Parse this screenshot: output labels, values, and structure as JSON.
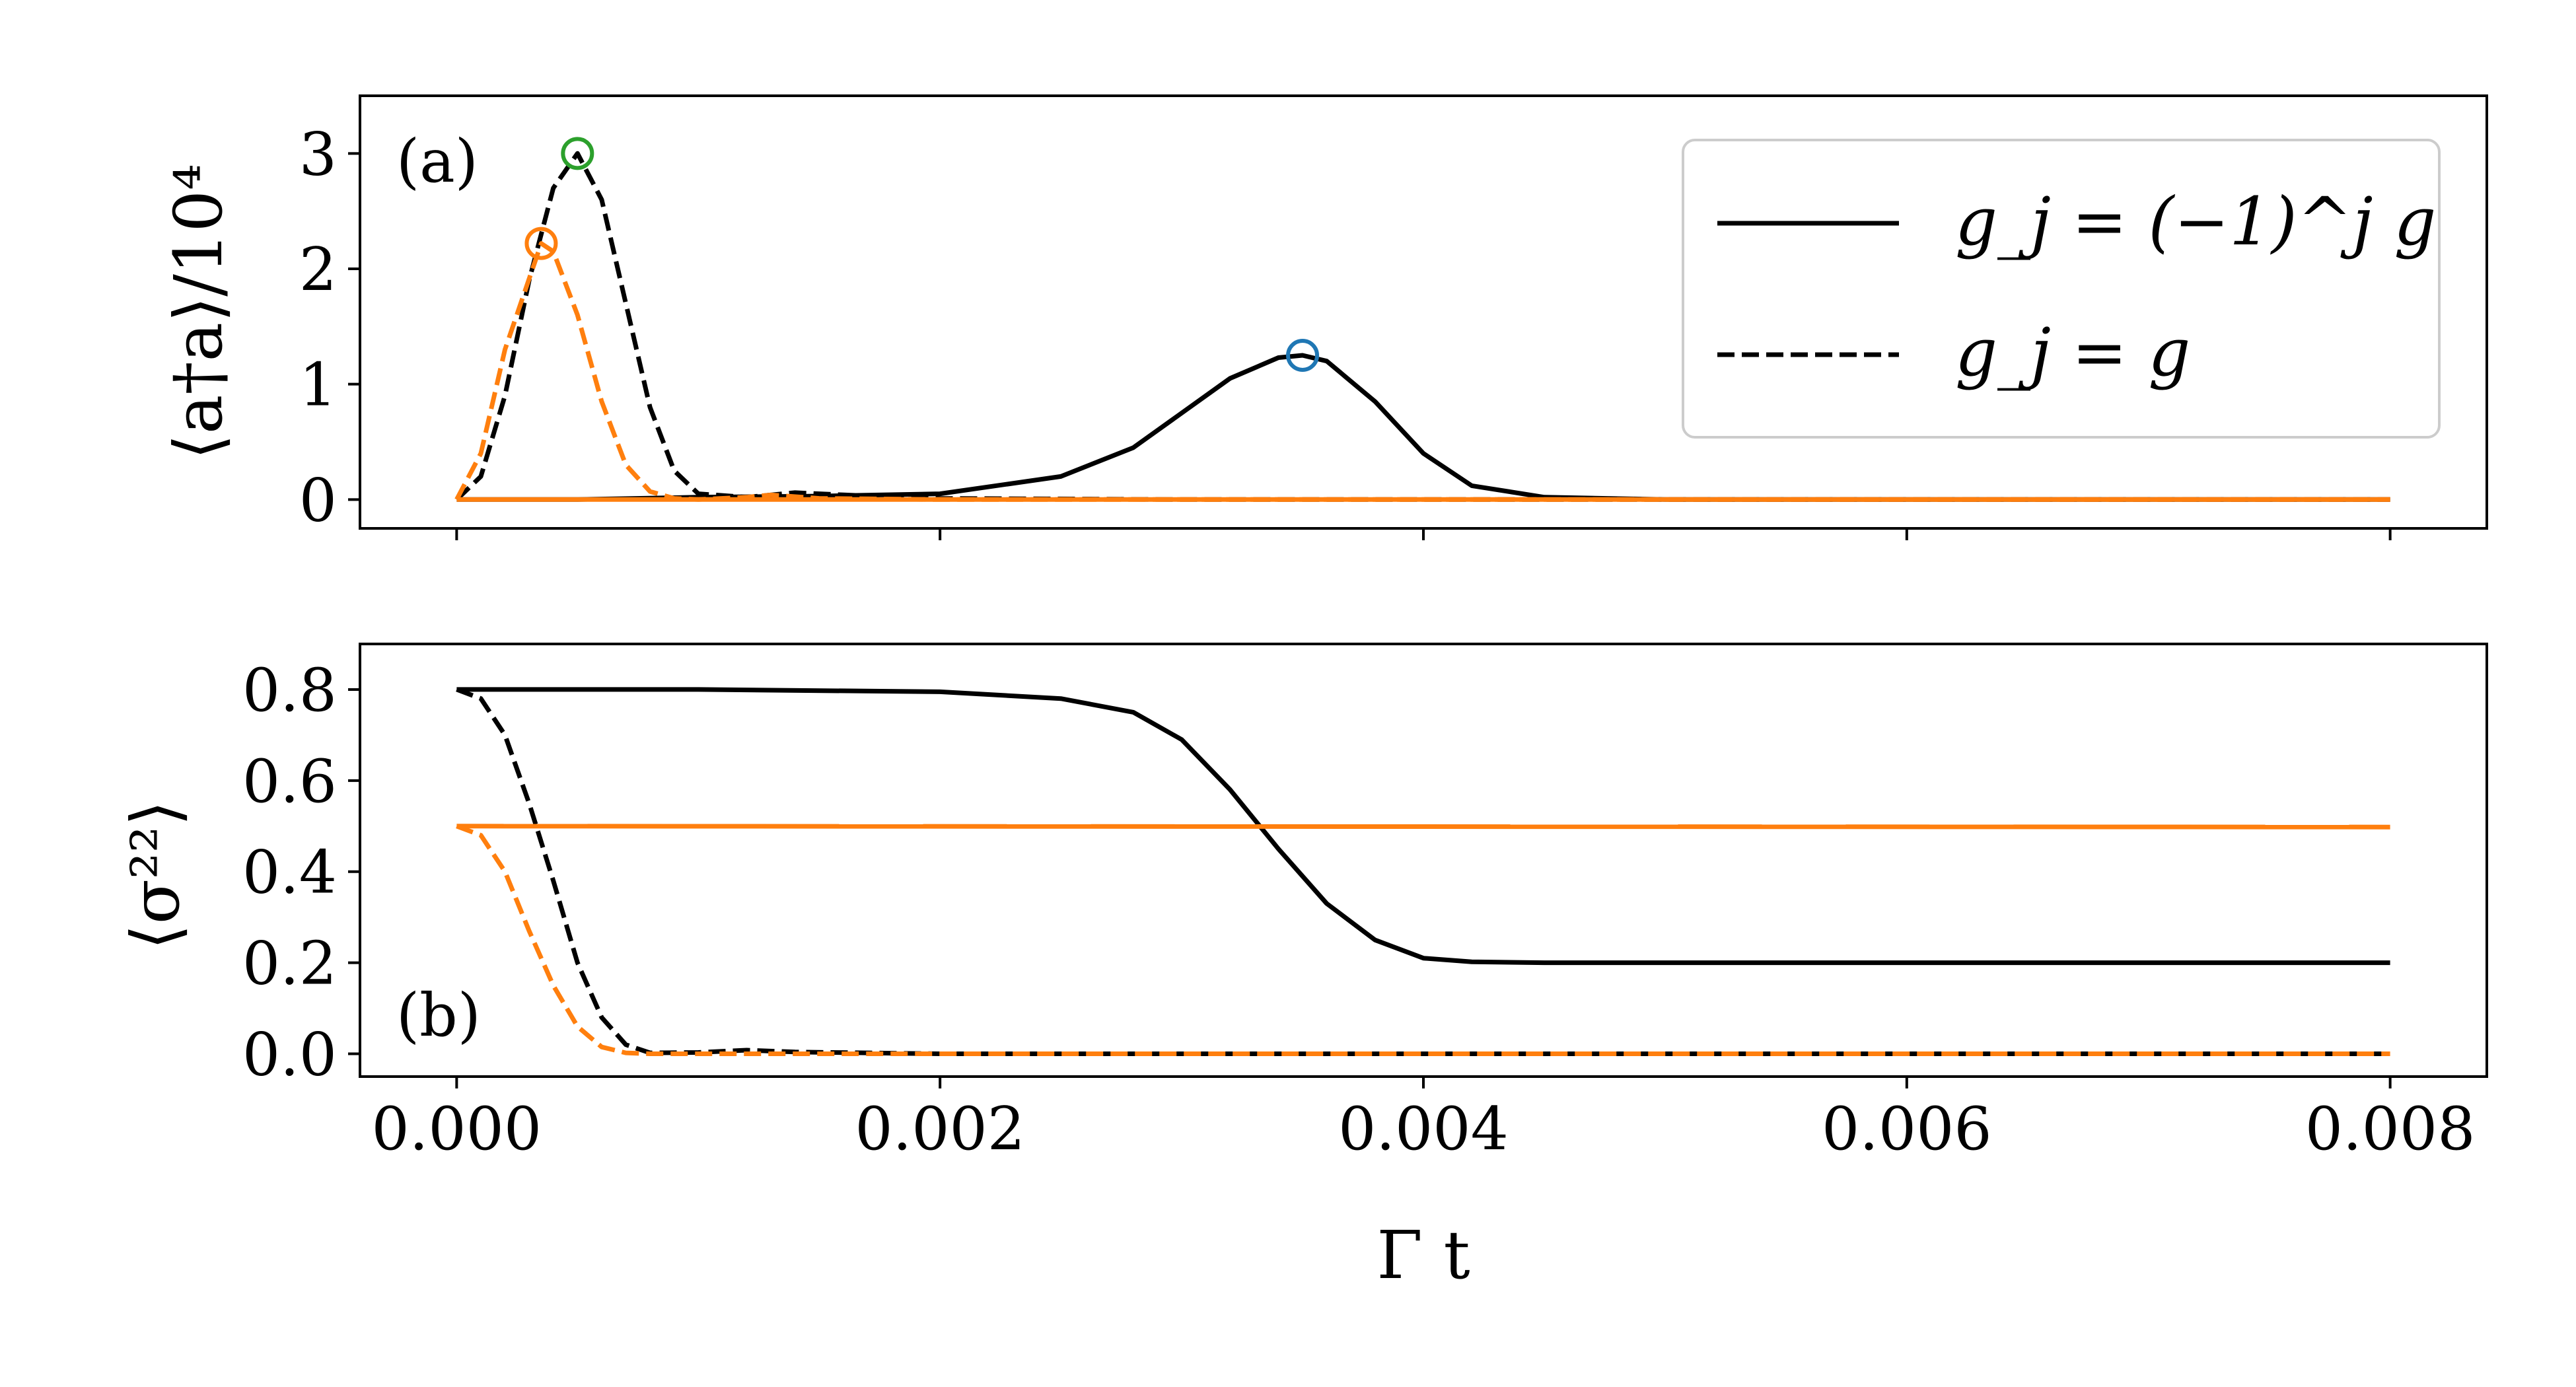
{
  "colors": {
    "black": "#000000",
    "orange": "#ff7f0e",
    "green": "#2ca02c",
    "blue": "#1f77b4",
    "legend_border": "#cccccc"
  },
  "xlabel": "Γ t",
  "x_tick_labels": [
    "0.000",
    "0.002",
    "0.004",
    "0.006",
    "0.008"
  ],
  "legend": [
    {
      "label": "g_j = (−1)^j g",
      "style": "solid",
      "color": "#000000"
    },
    {
      "label": "g_j = g",
      "style": "dashed",
      "color": "#000000"
    }
  ],
  "chart_data": [
    {
      "type": "line",
      "panel_label": "(a)",
      "ylabel": "⟨a†a⟩/10⁴",
      "xlim": [
        -0.0004,
        0.0084
      ],
      "ylim": [
        -0.25,
        3.5
      ],
      "yticks": [
        0,
        1,
        2,
        3
      ],
      "ytick_labels": [
        "0",
        "1",
        "2",
        "3"
      ],
      "series": [
        {
          "style": "solid",
          "color": "#000000",
          "x": [
            0,
            0.0005,
            0.001,
            0.0015,
            0.002,
            0.0025,
            0.0028,
            0.003,
            0.0032,
            0.0034,
            0.0035,
            0.0036,
            0.0038,
            0.004,
            0.0042,
            0.0045,
            0.005,
            0.006,
            0.007,
            0.008
          ],
          "y": [
            0,
            0,
            0.02,
            0.03,
            0.05,
            0.2,
            0.45,
            0.75,
            1.05,
            1.23,
            1.25,
            1.2,
            0.85,
            0.4,
            0.12,
            0.02,
            0,
            0,
            0,
            0
          ]
        },
        {
          "style": "dashed",
          "color": "#000000",
          "x": [
            0,
            0.0001,
            0.0002,
            0.0003,
            0.0004,
            0.0005,
            0.0006,
            0.0007,
            0.0008,
            0.0009,
            0.001,
            0.0012,
            0.0014,
            0.0016,
            0.002,
            0.003,
            0.004,
            0.005,
            0.006,
            0.007,
            0.008
          ],
          "y": [
            0,
            0.2,
            0.9,
            1.9,
            2.7,
            3.0,
            2.6,
            1.7,
            0.8,
            0.25,
            0.05,
            0.02,
            0.06,
            0.04,
            0.01,
            0,
            0,
            0,
            0,
            0,
            0
          ]
        },
        {
          "style": "dashed",
          "color": "#ff7f0e",
          "x": [
            0,
            0.0001,
            0.0002,
            0.00035,
            0.0004,
            0.0005,
            0.0006,
            0.0007,
            0.0008,
            0.0009,
            0.001,
            0.0012,
            0.0013,
            0.0015,
            0.002,
            0.004,
            0.006,
            0.008
          ],
          "y": [
            0,
            0.4,
            1.3,
            2.22,
            2.15,
            1.6,
            0.85,
            0.3,
            0.07,
            0.01,
            0,
            0.02,
            0.04,
            0.01,
            0,
            0,
            0,
            0
          ]
        },
        {
          "style": "solid",
          "color": "#ff7f0e",
          "x": [
            0,
            0.008
          ],
          "y": [
            0,
            0
          ]
        }
      ],
      "markers": [
        {
          "x": 0.0005,
          "y": 3.0,
          "color": "#2ca02c"
        },
        {
          "x": 0.00035,
          "y": 2.22,
          "color": "#ff7f0e"
        },
        {
          "x": 0.0035,
          "y": 1.25,
          "color": "#1f77b4"
        }
      ]
    },
    {
      "type": "line",
      "panel_label": "(b)",
      "ylabel": "⟨σ²²⟩",
      "xlim": [
        -0.0004,
        0.0084
      ],
      "ylim": [
        -0.05,
        0.9
      ],
      "yticks": [
        0,
        0.2,
        0.4,
        0.6,
        0.8
      ],
      "ytick_labels": [
        "0.0",
        "0.2",
        "0.4",
        "0.6",
        "0.8"
      ],
      "series": [
        {
          "style": "solid",
          "color": "#000000",
          "x": [
            0,
            0.001,
            0.002,
            0.0025,
            0.0028,
            0.003,
            0.0032,
            0.0034,
            0.0036,
            0.0038,
            0.004,
            0.0042,
            0.0045,
            0.005,
            0.006,
            0.008
          ],
          "y": [
            0.8,
            0.8,
            0.795,
            0.78,
            0.75,
            0.69,
            0.58,
            0.45,
            0.33,
            0.25,
            0.21,
            0.202,
            0.2,
            0.2,
            0.2,
            0.2
          ]
        },
        {
          "style": "dashed",
          "color": "#000000",
          "x": [
            0,
            0.0001,
            0.0002,
            0.0003,
            0.0004,
            0.0005,
            0.0006,
            0.0007,
            0.0008,
            0.001,
            0.0012,
            0.0014,
            0.002,
            0.004,
            0.006,
            0.008
          ],
          "y": [
            0.8,
            0.78,
            0.7,
            0.55,
            0.38,
            0.2,
            0.08,
            0.02,
            0.002,
            0.003,
            0.008,
            0.004,
            0,
            0,
            0,
            0
          ]
        },
        {
          "style": "dashed",
          "color": "#ff7f0e",
          "x": [
            0,
            0.0001,
            0.0002,
            0.0003,
            0.0004,
            0.0005,
            0.0006,
            0.0007,
            0.0008,
            0.001,
            0.002,
            0.004,
            0.006,
            0.008
          ],
          "y": [
            0.5,
            0.48,
            0.4,
            0.27,
            0.15,
            0.06,
            0.015,
            0.002,
            0,
            0,
            0,
            0,
            0,
            0
          ]
        },
        {
          "style": "solid",
          "color": "#ff7f0e",
          "x": [
            0,
            0.008
          ],
          "y": [
            0.5,
            0.498
          ]
        }
      ],
      "markers": []
    }
  ]
}
